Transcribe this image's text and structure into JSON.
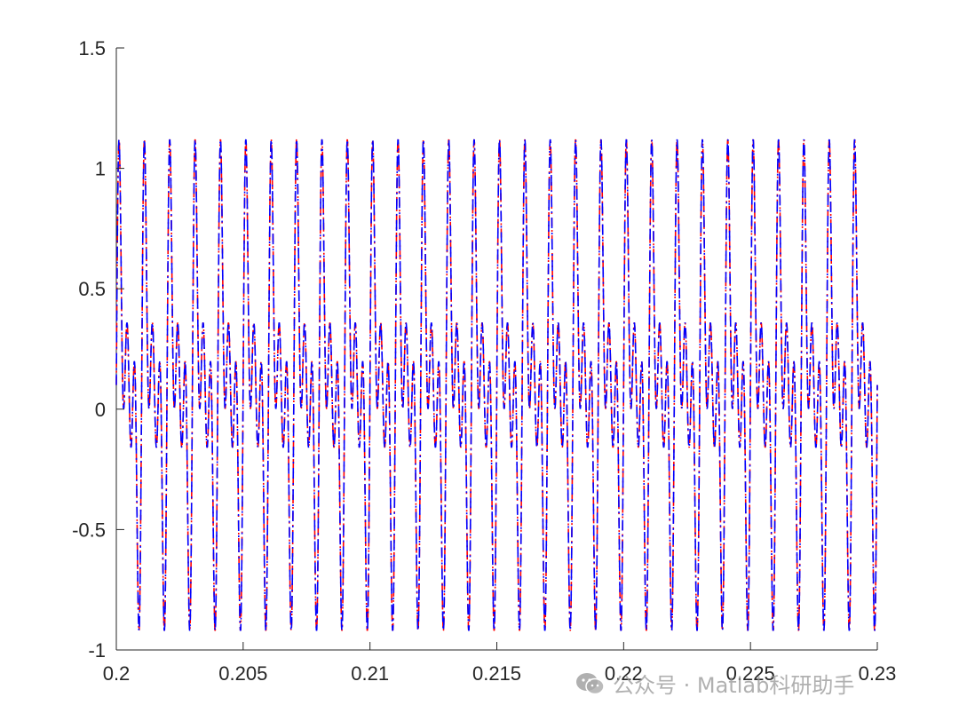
{
  "chart_data": {
    "type": "line",
    "title": "",
    "xlabel": "",
    "ylabel": "",
    "xlim": [
      0.2,
      0.23
    ],
    "ylim": [
      -1,
      1.5
    ],
    "x_ticks": [
      0.2,
      0.205,
      0.21,
      0.215,
      0.22,
      0.225,
      0.23
    ],
    "x_tick_labels": [
      "0.2",
      "0.205",
      "0.21",
      "0.215",
      "0.22",
      "0.225",
      "0.23"
    ],
    "y_ticks": [
      -1,
      -0.5,
      0,
      0.5,
      1,
      1.5
    ],
    "y_tick_labels": [
      "-1",
      "-0.5",
      "0",
      "0.5",
      "1",
      "1.5"
    ],
    "grid": false,
    "legend": "none",
    "series": [
      {
        "color": "#ff0000",
        "line_style": "dash-dot",
        "signal": {
          "components": [
            {
              "amplitude": 0.5,
              "frequency_hz": 1000,
              "phase_deg": 0
            },
            {
              "amplitude": 0.5,
              "frequency_hz": 2000,
              "phase_deg": 0
            },
            {
              "amplitude": 0.5,
              "frequency_hz": 3000,
              "phase_deg": 0
            }
          ],
          "peak": 1.12,
          "trough": -0.92
        }
      },
      {
        "color": "#0000ff",
        "line_style": "dash-dot",
        "signal": {
          "components": [
            {
              "amplitude": 0.5,
              "frequency_hz": 1000,
              "phase_deg": 0
            },
            {
              "amplitude": 0.5,
              "frequency_hz": 2000,
              "phase_deg": 0
            },
            {
              "amplitude": 0.5,
              "frequency_hz": 3000,
              "phase_deg": 0
            }
          ],
          "peak": 1.12,
          "trough": -0.92
        }
      }
    ]
  },
  "watermark": {
    "text": "公众号 · Matlab科研助手",
    "icon": "wechat-icon"
  }
}
